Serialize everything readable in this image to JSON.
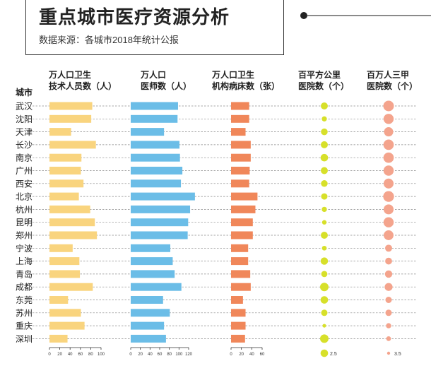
{
  "header": {
    "title": "重点城市医疗资源分析",
    "subtitle": "数据来源：各城市2018年统计公报"
  },
  "chart_data": {
    "type": "bar",
    "row_header": "城市",
    "categories": [
      "武汉",
      "沈阳",
      "天津",
      "长沙",
      "南京",
      "广州",
      "西安",
      "北京",
      "杭州",
      "昆明",
      "郑州",
      "宁波",
      "上海",
      "青岛",
      "成都",
      "东莞",
      "苏州",
      "重庆",
      "深圳"
    ],
    "series": [
      {
        "name_lines": [
          "万人口卫生",
          "技术人员数（人）"
        ],
        "type": "bar",
        "color": "#f9d47e",
        "ticks": [
          "0",
          "20",
          "40",
          "60",
          "80",
          "100"
        ],
        "xlim": [
          0,
          100
        ],
        "values": [
          83,
          81,
          42,
          90,
          62,
          61,
          66,
          57,
          79,
          88,
          92,
          45,
          58,
          59,
          84,
          36,
          61,
          68,
          35
        ]
      },
      {
        "name_lines": [
          "万人口",
          "医师数（人）"
        ],
        "type": "bar",
        "color": "#6bbde7",
        "ticks": [
          "0",
          "20",
          "40",
          "60",
          "80",
          "100",
          "120"
        ],
        "xlim": [
          0,
          120
        ],
        "values": [
          98,
          97,
          69,
          101,
          102,
          107,
          104,
          133,
          123,
          119,
          118,
          82,
          87,
          91,
          105,
          67,
          81,
          69,
          73
        ]
      },
      {
        "name_lines": [
          "万人口卫生",
          "机构病床数（张）"
        ],
        "type": "bar",
        "color": "#f0875a",
        "ticks": [
          "0",
          "20",
          "40",
          "60"
        ],
        "xlim": [
          0,
          60
        ],
        "values": [
          35,
          35,
          28,
          38,
          38,
          36,
          35,
          51,
          47,
          42,
          42,
          33,
          33,
          37,
          38,
          23,
          28,
          28,
          27
        ]
      },
      {
        "name_lines": [
          "百平方公里",
          "医院数（个）"
        ],
        "type": "bubble",
        "color": "#d7e02a",
        "legend_value": "2.5",
        "legend_ref": 2.5,
        "values": [
          2.2,
          1.2,
          2.0,
          2.2,
          2.5,
          2.2,
          2.0,
          1.8,
          1.2,
          0.9,
          2.2,
          1.0,
          2.4,
          1.7,
          3.2,
          2.5,
          1.8,
          0.6,
          3.2
        ]
      },
      {
        "name_lines": [
          "百万人三甲",
          "医院数（个）"
        ],
        "type": "bubble",
        "color": "#f4a48d",
        "legend_value": "3.5",
        "legend_ref": 3.5,
        "values": [
          5.0,
          4.6,
          3.8,
          4.8,
          4.8,
          4.6,
          4.4,
          5.2,
          4.4,
          4.6,
          4.3,
          2.2,
          2.1,
          2.4,
          2.8,
          1.8,
          1.8,
          1.2,
          1.0
        ]
      }
    ]
  }
}
